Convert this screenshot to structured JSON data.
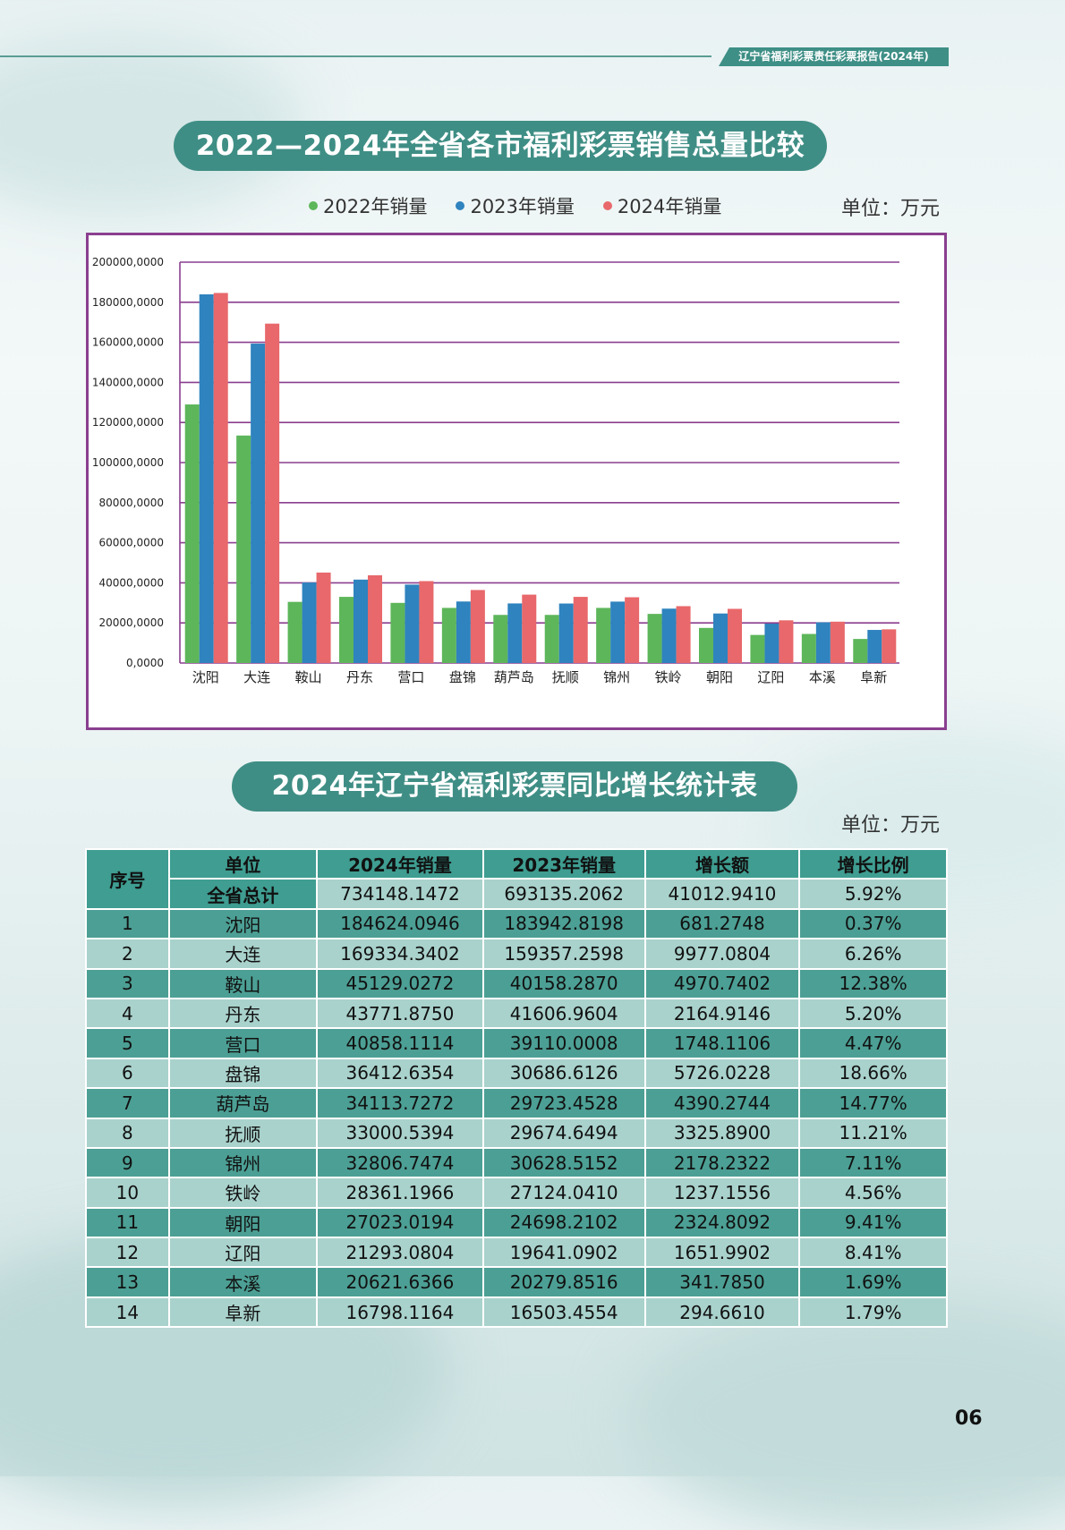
{
  "header": {
    "tag": "辽宁省福利彩票责任彩票报告(2024年)"
  },
  "chart_section": {
    "title": "2022—2024年全省各市福利彩票销售总量比较",
    "unit": "单位：万元"
  },
  "chart_data": {
    "type": "bar",
    "categories": [
      "沈阳",
      "大连",
      "鞍山",
      "丹东",
      "营口",
      "盘锦",
      "葫芦岛",
      "抚顺",
      "锦州",
      "铁岭",
      "朝阳",
      "辽阳",
      "本溪",
      "阜新"
    ],
    "series": [
      {
        "name": "2022年销量",
        "color": "#5db65a",
        "values": [
          129000,
          113500,
          30500,
          33000,
          30000,
          27500,
          24000,
          24000,
          27500,
          24500,
          17500,
          14000,
          14500,
          12000
        ]
      },
      {
        "name": "2023年销量",
        "color": "#2f83be",
        "values": [
          183942.8198,
          159357.2598,
          40158.287,
          41606.9604,
          39110.0008,
          30686.6126,
          29723.4528,
          29674.6494,
          30628.5152,
          27124.041,
          24698.2102,
          19641.0902,
          20279.8516,
          16503.4554
        ]
      },
      {
        "name": "2024年销量",
        "color": "#e8686b",
        "values": [
          184624.0946,
          169334.3402,
          45129.0272,
          43771.875,
          40858.1114,
          36412.6354,
          34113.7272,
          33000.5394,
          32806.7474,
          28361.1966,
          27023.0194,
          21293.0804,
          20621.6366,
          16798.1164
        ]
      }
    ],
    "ylim": [
      0,
      200000
    ],
    "yticks": [
      "0,0000",
      "20000,0000",
      "40000,0000",
      "60000,0000",
      "80000,0000",
      "100000,0000",
      "120000,0000",
      "140000,0000",
      "160000,0000",
      "180000,0000",
      "200000,0000"
    ],
    "grid": true,
    "legend": "top"
  },
  "table_section": {
    "title": "2024年辽宁省福利彩票同比增长统计表",
    "unit": "单位：万元",
    "headers": {
      "index": "序号",
      "unit": "单位",
      "y2024": "2024年销量",
      "y2023": "2023年销量",
      "growth": "增长额",
      "ratio": "增长比例"
    },
    "total": {
      "label": "全省总计",
      "y2024": "734148.1472",
      "y2023": "693135.2062",
      "growth": "41012.9410",
      "ratio": "5.92%"
    },
    "rows": [
      [
        "1",
        "沈阳",
        "184624.0946",
        "183942.8198",
        "681.2748",
        "0.37%"
      ],
      [
        "2",
        "大连",
        "169334.3402",
        "159357.2598",
        "9977.0804",
        "6.26%"
      ],
      [
        "3",
        "鞍山",
        "45129.0272",
        "40158.2870",
        "4970.7402",
        "12.38%"
      ],
      [
        "4",
        "丹东",
        "43771.8750",
        "41606.9604",
        "2164.9146",
        "5.20%"
      ],
      [
        "5",
        "营口",
        "40858.1114",
        "39110.0008",
        "1748.1106",
        "4.47%"
      ],
      [
        "6",
        "盘锦",
        "36412.6354",
        "30686.6126",
        "5726.0228",
        "18.66%"
      ],
      [
        "7",
        "葫芦岛",
        "34113.7272",
        "29723.4528",
        "4390.2744",
        "14.77%"
      ],
      [
        "8",
        "抚顺",
        "33000.5394",
        "29674.6494",
        "3325.8900",
        "11.21%"
      ],
      [
        "9",
        "锦州",
        "32806.7474",
        "30628.5152",
        "2178.2322",
        "7.11%"
      ],
      [
        "10",
        "铁岭",
        "28361.1966",
        "27124.0410",
        "1237.1556",
        "4.56%"
      ],
      [
        "11",
        "朝阳",
        "27023.0194",
        "24698.2102",
        "2324.8092",
        "9.41%"
      ],
      [
        "12",
        "辽阳",
        "21293.0804",
        "19641.0902",
        "1651.9902",
        "8.41%"
      ],
      [
        "13",
        "本溪",
        "20621.6366",
        "20279.8516",
        "341.7850",
        "1.69%"
      ],
      [
        "14",
        "阜新",
        "16798.1164",
        "16503.4554",
        "294.6610",
        "1.79%"
      ]
    ]
  },
  "footer": {
    "page_number": "06"
  }
}
